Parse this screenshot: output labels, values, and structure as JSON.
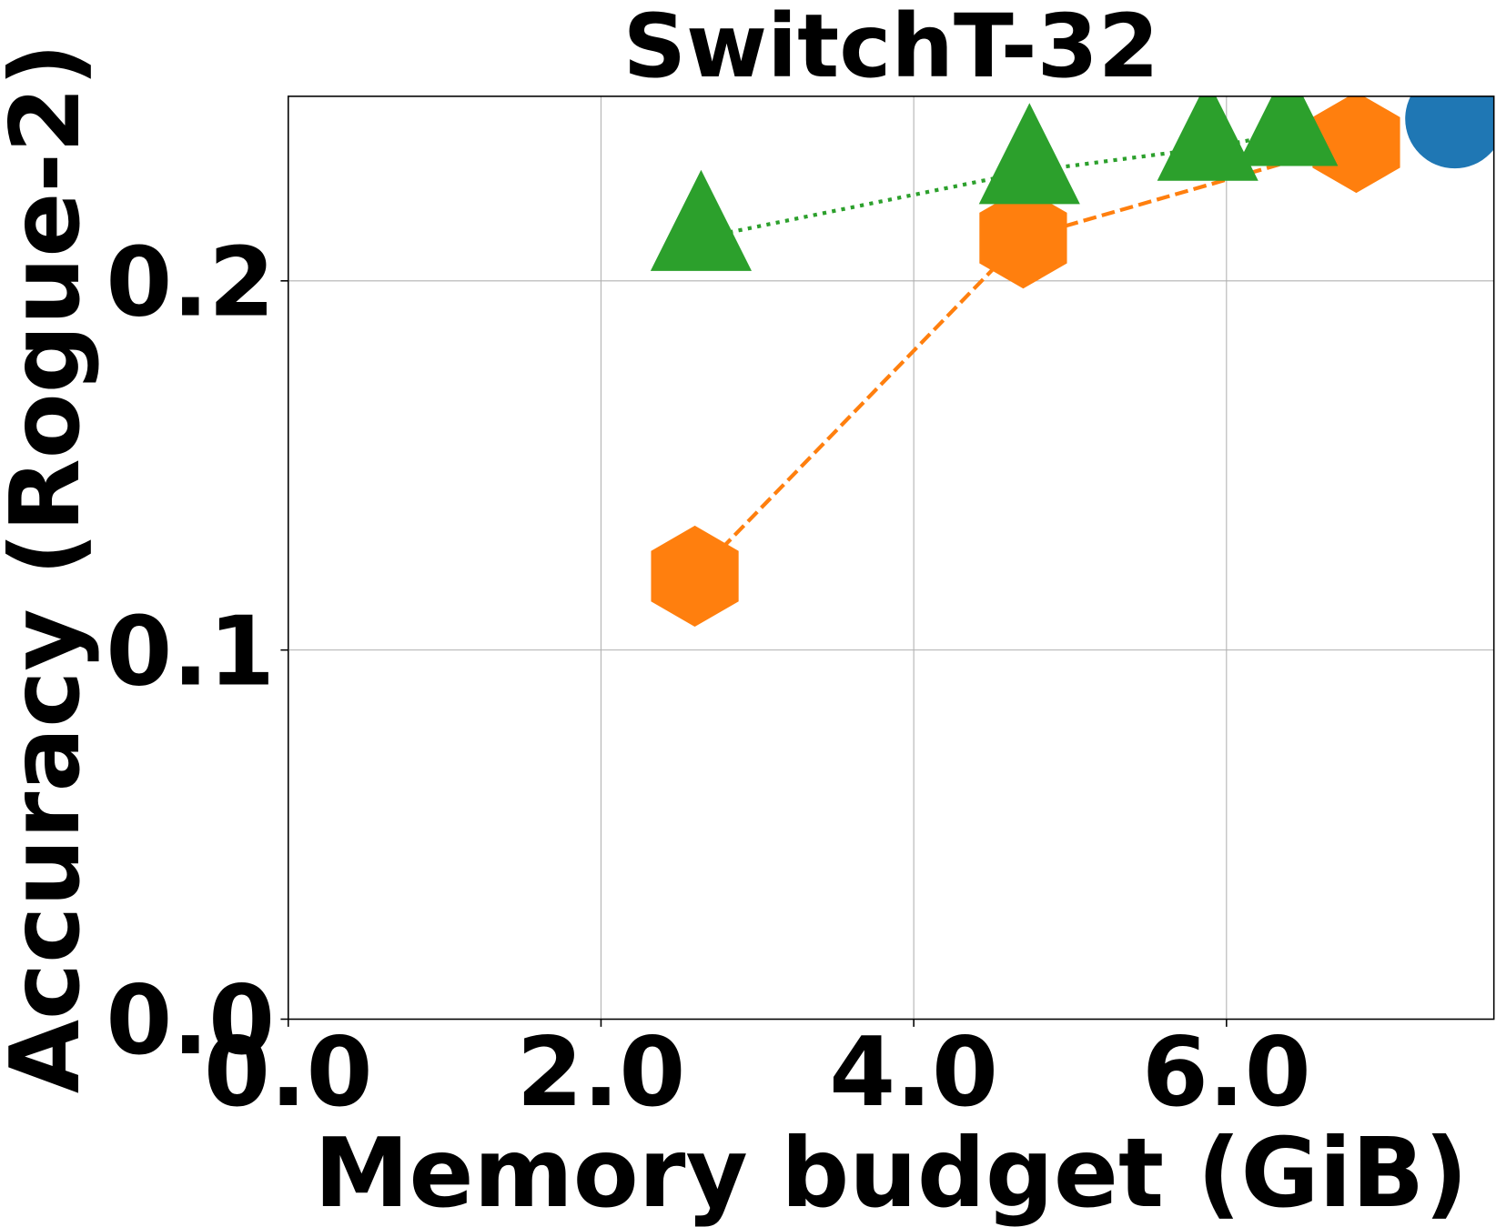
{
  "chart_data": {
    "type": "scatter",
    "title": "SwitchT-32",
    "x_label": "Memory budget (GiB)",
    "y_label": "Accuracy (Rogue-2)",
    "xlim": [
      0,
      7.71
    ],
    "ylim": [
      0,
      0.25
    ],
    "xticks": [
      {
        "value": 0,
        "label": "0.0"
      },
      {
        "value": 2,
        "label": "2.0"
      },
      {
        "value": 4,
        "label": "4.0"
      },
      {
        "value": 6,
        "label": "6.0"
      }
    ],
    "yticks": [
      {
        "value": 0,
        "label": "0.0"
      },
      0.1,
      0.2
    ],
    "grid": true,
    "series": [
      {
        "color": "#ff7f0e",
        "marker": "hexagon",
        "line": "dashed",
        "x": [
          2.6,
          4.7,
          6.83
        ],
        "values": [
          0.12,
          0.2116,
          0.2375
        ]
      },
      {
        "color": "#2ca02c",
        "marker": "triangle",
        "line": "dotted",
        "x": [
          2.64,
          4.74,
          5.88,
          6.39
        ],
        "values": [
          0.2116,
          0.2297,
          0.236,
          0.24
        ]
      },
      {
        "color": "#1f77b4",
        "marker": "circle",
        "line": "none",
        "x": [
          7.46
        ],
        "values": [
          0.2439
        ]
      }
    ]
  }
}
